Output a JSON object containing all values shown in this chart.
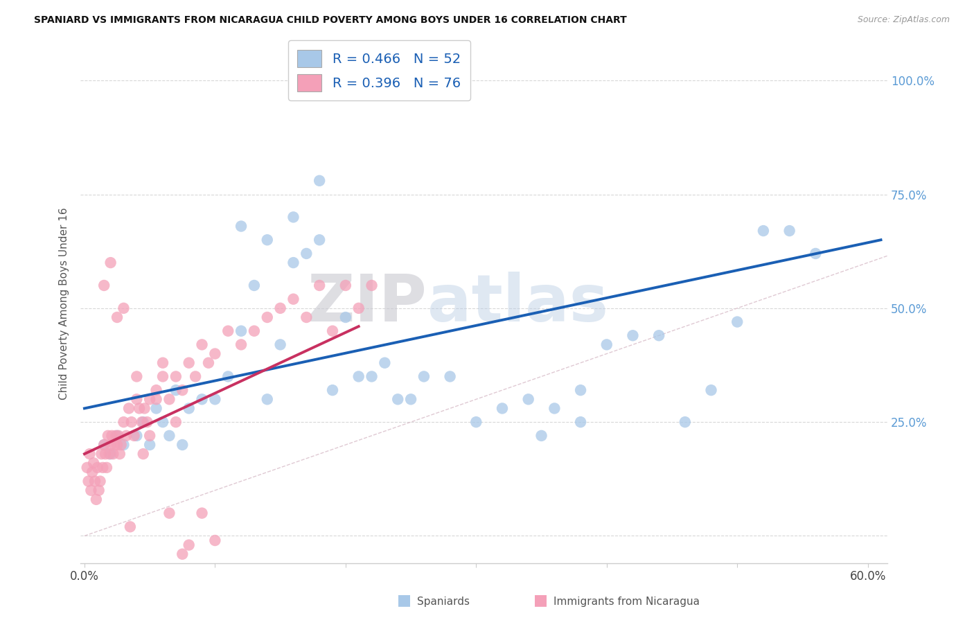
{
  "title": "SPANIARD VS IMMIGRANTS FROM NICARAGUA CHILD POVERTY AMONG BOYS UNDER 16 CORRELATION CHART",
  "source": "Source: ZipAtlas.com",
  "ylabel": "Child Poverty Among Boys Under 16",
  "xlim": [
    -0.003,
    0.615
  ],
  "ylim": [
    -0.06,
    1.08
  ],
  "yticks": [
    0.0,
    0.25,
    0.5,
    0.75,
    1.0
  ],
  "ytick_labels_right": [
    "",
    "25.0%",
    "50.0%",
    "75.0%",
    "100.0%"
  ],
  "xticks": [
    0.0,
    0.1,
    0.2,
    0.3,
    0.4,
    0.5,
    0.6
  ],
  "xtick_labels": [
    "0.0%",
    "",
    "",
    "",
    "",
    "",
    "60.0%"
  ],
  "color_blue": "#a8c8e8",
  "color_pink": "#f4a0b8",
  "color_blue_line": "#1a5fb4",
  "color_pink_line": "#c83060",
  "color_diag": "#c8c8c8",
  "bg_color": "#ffffff",
  "grid_color": "#d8d8d8",
  "blue_x": [
    0.015,
    0.02,
    0.025,
    0.03,
    0.04,
    0.045,
    0.05,
    0.055,
    0.06,
    0.065,
    0.07,
    0.075,
    0.08,
    0.09,
    0.1,
    0.11,
    0.12,
    0.13,
    0.14,
    0.15,
    0.16,
    0.17,
    0.18,
    0.19,
    0.2,
    0.21,
    0.22,
    0.23,
    0.24,
    0.25,
    0.26,
    0.28,
    0.3,
    0.32,
    0.34,
    0.36,
    0.38,
    0.4,
    0.42,
    0.44,
    0.46,
    0.48,
    0.5,
    0.52,
    0.54,
    0.56,
    0.12,
    0.14,
    0.16,
    0.18,
    0.35,
    0.38
  ],
  "blue_y": [
    0.2,
    0.18,
    0.22,
    0.2,
    0.22,
    0.25,
    0.2,
    0.28,
    0.25,
    0.22,
    0.32,
    0.2,
    0.28,
    0.3,
    0.3,
    0.35,
    0.45,
    0.55,
    0.3,
    0.42,
    0.6,
    0.62,
    0.65,
    0.32,
    0.48,
    0.35,
    0.35,
    0.38,
    0.3,
    0.3,
    0.35,
    0.35,
    0.25,
    0.28,
    0.3,
    0.28,
    0.32,
    0.42,
    0.44,
    0.44,
    0.25,
    0.32,
    0.47,
    0.67,
    0.67,
    0.62,
    0.68,
    0.65,
    0.7,
    0.78,
    0.22,
    0.25
  ],
  "pink_x": [
    0.002,
    0.003,
    0.004,
    0.005,
    0.006,
    0.007,
    0.008,
    0.009,
    0.01,
    0.011,
    0.012,
    0.013,
    0.014,
    0.015,
    0.016,
    0.017,
    0.018,
    0.019,
    0.02,
    0.021,
    0.022,
    0.023,
    0.024,
    0.025,
    0.026,
    0.027,
    0.028,
    0.03,
    0.032,
    0.034,
    0.036,
    0.038,
    0.04,
    0.042,
    0.044,
    0.046,
    0.048,
    0.05,
    0.055,
    0.06,
    0.065,
    0.07,
    0.075,
    0.08,
    0.085,
    0.09,
    0.095,
    0.1,
    0.11,
    0.12,
    0.13,
    0.14,
    0.15,
    0.16,
    0.17,
    0.18,
    0.19,
    0.2,
    0.21,
    0.22,
    0.015,
    0.02,
    0.025,
    0.03,
    0.04,
    0.05,
    0.06,
    0.07,
    0.08,
    0.09,
    0.1,
    0.035,
    0.045,
    0.055,
    0.065,
    0.075
  ],
  "pink_y": [
    0.15,
    0.12,
    0.18,
    0.1,
    0.14,
    0.16,
    0.12,
    0.08,
    0.15,
    0.1,
    0.12,
    0.18,
    0.15,
    0.2,
    0.18,
    0.15,
    0.22,
    0.18,
    0.2,
    0.22,
    0.18,
    0.2,
    0.22,
    0.2,
    0.22,
    0.18,
    0.2,
    0.25,
    0.22,
    0.28,
    0.25,
    0.22,
    0.3,
    0.28,
    0.25,
    0.28,
    0.25,
    0.3,
    0.32,
    0.35,
    0.3,
    0.35,
    0.32,
    0.38,
    0.35,
    0.42,
    0.38,
    0.4,
    0.45,
    0.42,
    0.45,
    0.48,
    0.5,
    0.52,
    0.48,
    0.55,
    0.45,
    0.55,
    0.5,
    0.55,
    0.55,
    0.6,
    0.48,
    0.5,
    0.35,
    0.22,
    0.38,
    0.25,
    -0.02,
    0.05,
    -0.01,
    0.02,
    0.18,
    0.3,
    0.05,
    -0.04
  ],
  "blue_line_x0": 0.0,
  "blue_line_y0": 0.28,
  "blue_line_x1": 0.61,
  "blue_line_y1": 0.65,
  "pink_line_x0": 0.0,
  "pink_line_y0": 0.18,
  "pink_line_x1": 0.21,
  "pink_line_y1": 0.46
}
